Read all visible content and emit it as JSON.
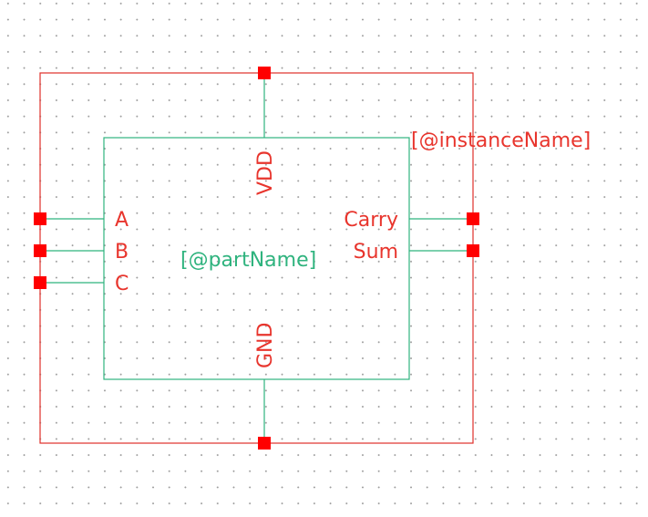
{
  "symbol": {
    "instance_name": "[@instanceName]",
    "part_name": "[@partName]",
    "pins": {
      "left": [
        "A",
        "B",
        "C"
      ],
      "right": [
        "Carry",
        "Sum"
      ],
      "top": "VDD",
      "bottom": "GND"
    }
  },
  "colors": {
    "boundary": "#e0302a",
    "body": "#2fb37e",
    "pin_square": "#ff0000",
    "grid_dot": "#9a9a9a"
  }
}
